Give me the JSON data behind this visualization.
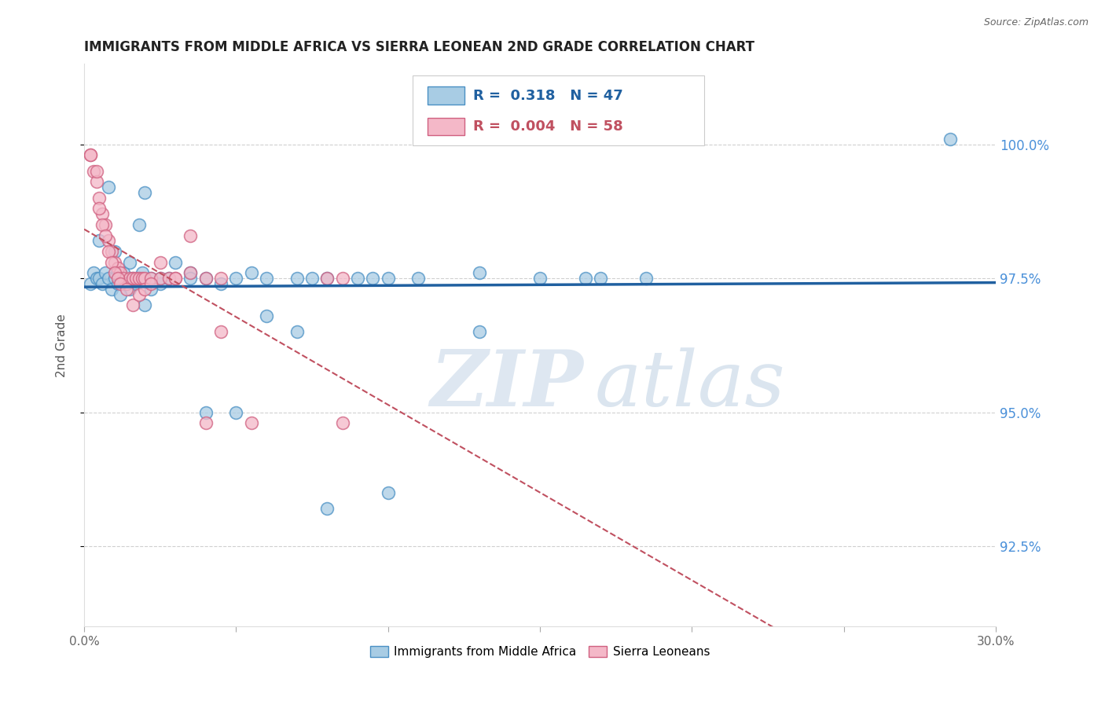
{
  "title": "IMMIGRANTS FROM MIDDLE AFRICA VS SIERRA LEONEAN 2ND GRADE CORRELATION CHART",
  "source": "Source: ZipAtlas.com",
  "ylabel": "2nd Grade",
  "yticks": [
    92.5,
    95.0,
    97.5,
    100.0
  ],
  "ytick_labels": [
    "92.5%",
    "95.0%",
    "97.5%",
    "100.0%"
  ],
  "xlim": [
    0.0,
    30.0
  ],
  "ylim": [
    91.0,
    101.5
  ],
  "legend_R_blue": "0.318",
  "legend_N_blue": "47",
  "legend_R_pink": "0.004",
  "legend_N_pink": "58",
  "legend_label_blue": "Immigrants from Middle Africa",
  "legend_label_pink": "Sierra Leoneans",
  "blue_color": "#a8cce4",
  "pink_color": "#f4b8c8",
  "blue_edge_color": "#4a90c4",
  "pink_edge_color": "#d06080",
  "blue_line_color": "#2060a0",
  "pink_line_color": "#c05060",
  "blue_scatter_x": [
    0.2,
    0.3,
    0.4,
    0.5,
    0.6,
    0.7,
    0.8,
    0.9,
    1.0,
    1.1,
    1.2,
    1.3,
    1.4,
    1.5,
    1.6,
    1.7,
    1.8,
    1.9,
    2.0,
    2.2,
    2.5,
    2.8,
    3.5,
    4.0,
    4.5,
    5.0,
    5.5,
    6.0,
    7.0,
    7.5,
    8.0,
    9.0,
    9.5,
    10.0,
    11.0,
    13.0,
    15.0,
    16.5,
    17.0,
    18.5,
    28.5
  ],
  "blue_scatter_y": [
    97.4,
    97.6,
    97.5,
    97.5,
    97.4,
    97.6,
    97.5,
    97.3,
    97.5,
    97.4,
    97.5,
    97.6,
    97.4,
    97.3,
    97.5,
    97.4,
    97.5,
    97.6,
    99.1,
    97.5,
    97.4,
    97.5,
    97.6,
    97.5,
    97.4,
    97.5,
    97.6,
    97.5,
    97.5,
    97.5,
    97.5,
    97.5,
    97.5,
    97.5,
    97.5,
    97.6,
    97.5,
    97.5,
    97.5,
    97.5,
    100.1
  ],
  "blue_scatter_x2": [
    0.5,
    0.8,
    1.0,
    1.2,
    1.5,
    1.8,
    2.0,
    2.2,
    2.5,
    3.0,
    3.5,
    4.0,
    5.0,
    6.0,
    7.0,
    8.0,
    10.0,
    13.0
  ],
  "blue_scatter_y2": [
    98.2,
    99.2,
    98.0,
    97.2,
    97.8,
    98.5,
    97.0,
    97.3,
    97.5,
    97.8,
    97.5,
    95.0,
    95.0,
    96.8,
    96.5,
    93.2,
    93.5,
    96.5
  ],
  "pink_scatter_x": [
    0.2,
    0.3,
    0.4,
    0.5,
    0.6,
    0.7,
    0.8,
    0.9,
    1.0,
    1.1,
    1.2,
    1.3,
    1.4,
    1.5,
    1.6,
    1.7,
    1.8,
    1.9,
    2.0,
    2.2,
    2.5,
    2.8,
    3.0,
    3.5,
    4.0,
    4.5,
    8.0,
    8.5
  ],
  "pink_scatter_y": [
    99.8,
    99.5,
    99.3,
    99.0,
    98.7,
    98.5,
    98.2,
    98.0,
    97.8,
    97.7,
    97.6,
    97.5,
    97.4,
    97.5,
    97.5,
    97.5,
    97.5,
    97.5,
    97.5,
    97.5,
    97.5,
    97.5,
    97.5,
    97.6,
    97.5,
    97.5,
    97.5,
    97.5
  ],
  "pink_scatter_x2": [
    0.2,
    0.4,
    0.5,
    0.6,
    0.7,
    0.8,
    0.9,
    1.0,
    1.1,
    1.2,
    1.4,
    1.6,
    1.8,
    2.0,
    2.2,
    2.5,
    3.0,
    3.5,
    4.0,
    4.5,
    5.5,
    8.5
  ],
  "pink_scatter_y2": [
    99.8,
    99.5,
    98.8,
    98.5,
    98.3,
    98.0,
    97.8,
    97.6,
    97.5,
    97.4,
    97.3,
    97.0,
    97.2,
    97.3,
    97.4,
    97.8,
    97.5,
    98.3,
    94.8,
    96.5,
    94.8,
    94.8
  ],
  "watermark_part1": "ZIP",
  "watermark_part2": "atlas",
  "background_color": "#ffffff",
  "grid_color": "#d0d0d0",
  "title_fontsize": 12,
  "right_axis_color": "#4a90d9",
  "axis_tick_color": "#888888"
}
